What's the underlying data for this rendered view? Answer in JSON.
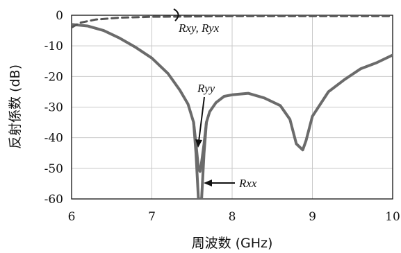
{
  "chart_data": {
    "type": "line",
    "xlabel": "周波数 (GHz)",
    "ylabel": "反射係数 (dB)",
    "xlim": [
      6,
      10
    ],
    "ylim": [
      -60,
      0
    ],
    "grid": true,
    "x_ticks": [
      "6",
      "7",
      "8",
      "9",
      "10"
    ],
    "y_ticks": [
      "0",
      "-10",
      "-20",
      "-30",
      "-40",
      "-50",
      "-60"
    ],
    "series": [
      {
        "name": "Rxx",
        "color": "#6b6b6b",
        "style": "solid",
        "x": [
          6.0,
          6.2,
          6.4,
          6.6,
          6.8,
          7.0,
          7.2,
          7.35,
          7.45,
          7.52,
          7.55,
          7.58,
          7.6,
          7.62,
          7.65,
          7.68,
          7.72,
          7.8,
          7.9,
          8.0,
          8.2,
          8.4,
          8.6,
          8.72,
          8.8,
          8.88,
          8.92,
          9.0,
          9.2,
          9.4,
          9.6,
          9.8,
          10.0
        ],
        "y": [
          -3,
          -3.5,
          -5,
          -7.5,
          -10.5,
          -14,
          -19,
          -24.5,
          -29,
          -35,
          -45,
          -60,
          -60,
          -60,
          -45,
          -35,
          -31.5,
          -28.5,
          -26.5,
          -26,
          -25.5,
          -27,
          -29.5,
          -34,
          -42,
          -44,
          -41,
          -33,
          -25,
          -21,
          -17.5,
          -15.5,
          -13
        ]
      },
      {
        "name": "Ryy",
        "color": "#6b6b6b",
        "style": "solid",
        "x": [
          7.52,
          7.55,
          7.58,
          7.6,
          7.62,
          7.65,
          7.68
        ],
        "y": [
          -35,
          -42,
          -50,
          -51,
          -48,
          -42,
          -35
        ]
      },
      {
        "name": "Rxy, Ryx",
        "color": "#555555",
        "style": "dashed",
        "x": [
          6.0,
          6.1,
          6.3,
          6.6,
          7.0,
          7.5,
          8.0,
          8.5,
          9.0,
          9.5,
          10.0
        ],
        "y": [
          -4,
          -2.5,
          -1.4,
          -0.8,
          -0.5,
          -0.4,
          -0.3,
          -0.3,
          -0.3,
          -0.3,
          -0.3
        ]
      }
    ],
    "annotations": [
      {
        "text": "Rxy, Ryx",
        "name": "annotation-rxy-ryx"
      },
      {
        "text": "Ryy",
        "name": "annotation-ryy"
      },
      {
        "text": "Rxx",
        "name": "annotation-rxx"
      }
    ]
  }
}
